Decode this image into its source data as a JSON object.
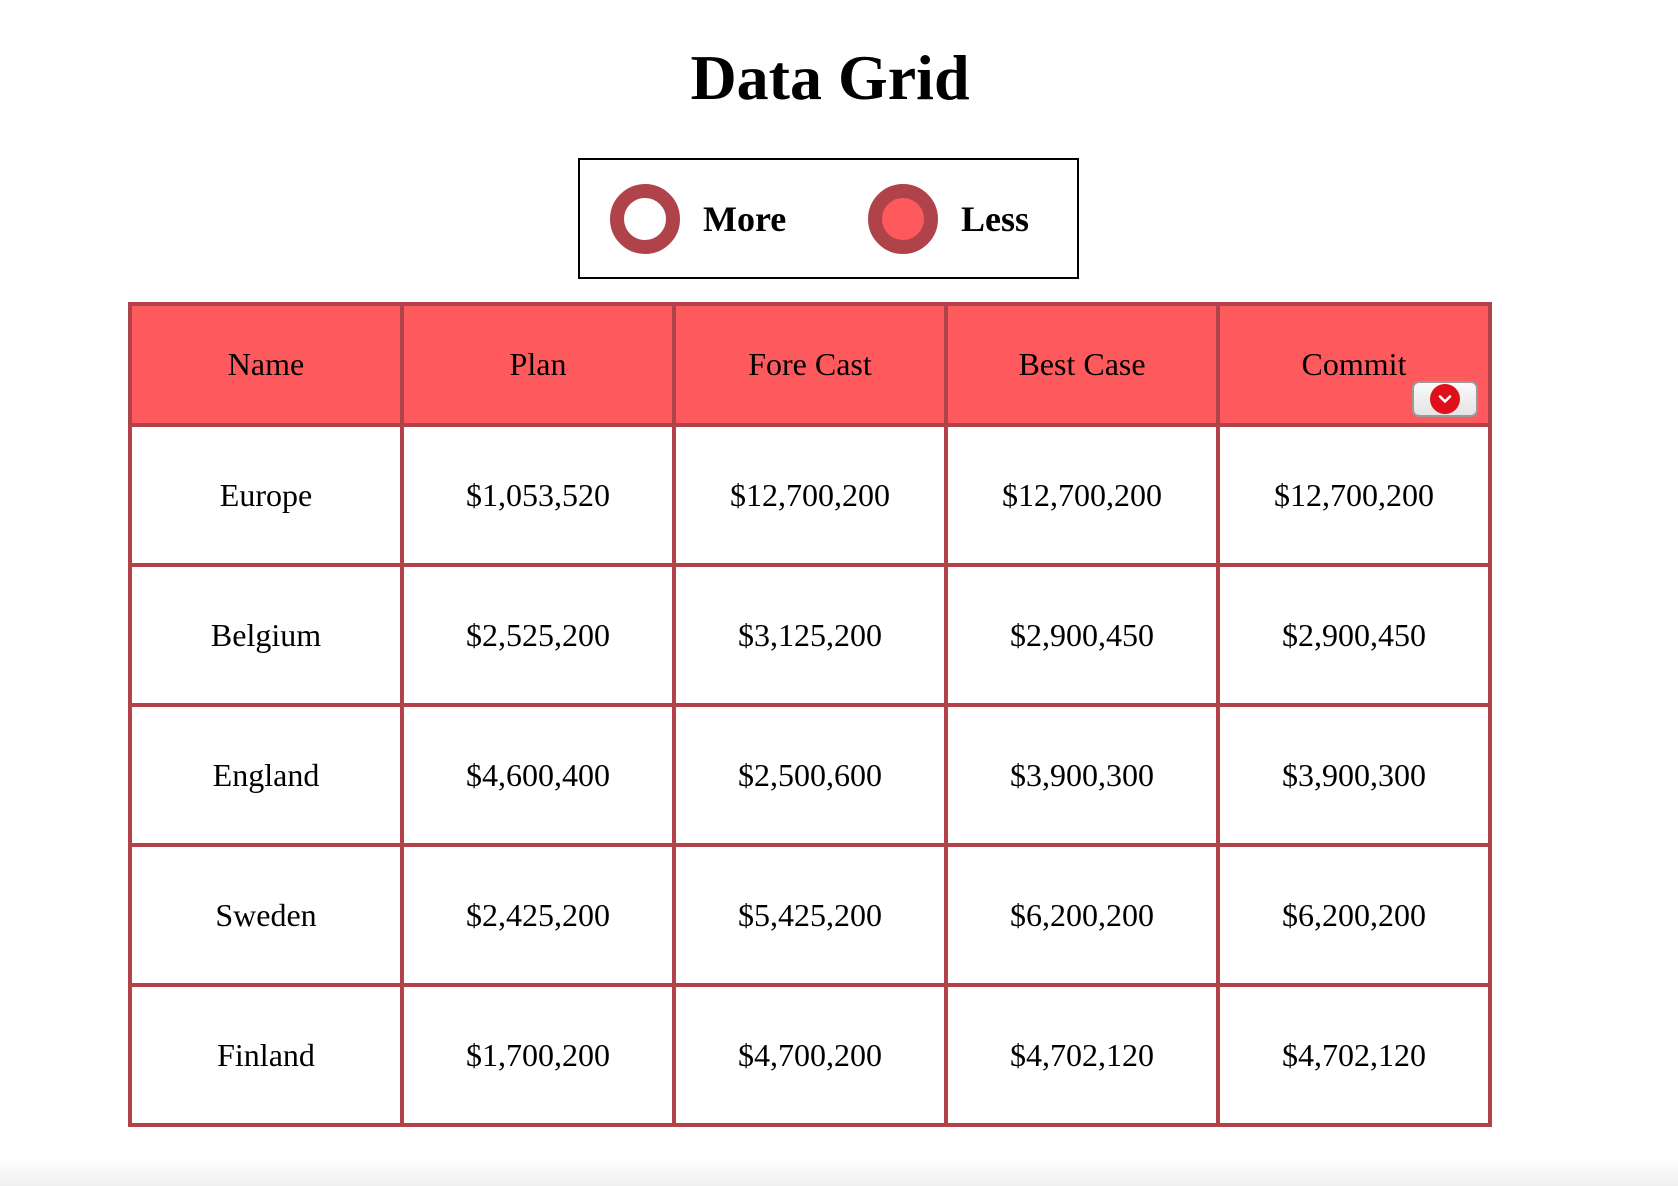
{
  "page": {
    "title": "Data Grid"
  },
  "filter": {
    "options": [
      {
        "label": "More",
        "selected": false
      },
      {
        "label": "Less",
        "selected": true
      }
    ]
  },
  "grid": {
    "columns": [
      "Name",
      "Plan",
      "Fore Cast",
      "Best Case",
      "Commit"
    ],
    "column_menu_icon": "chevron-down-icon",
    "rows": [
      {
        "name": "Europe",
        "plan": "$1,053,520",
        "forecast": "$12,700,200",
        "best_case": "$12,700,200",
        "commit": "$12,700,200"
      },
      {
        "name": "Belgium",
        "plan": "$2,525,200",
        "forecast": "$3,125,200",
        "best_case": "$2,900,450",
        "commit": "$2,900,450"
      },
      {
        "name": "England",
        "plan": "$4,600,400",
        "forecast": "$2,500,600",
        "best_case": "$3,900,300",
        "commit": "$3,900,300"
      },
      {
        "name": "Sweden",
        "plan": "$2,425,200",
        "forecast": "$5,425,200",
        "best_case": "$6,200,200",
        "commit": "$6,200,200"
      },
      {
        "name": "Finland",
        "plan": "$1,700,200",
        "forecast": "$4,700,200",
        "best_case": "$4,702,120",
        "commit": "$4,702,120"
      }
    ]
  },
  "colors": {
    "header_bg": "#fe5a5e",
    "border": "#b0424a",
    "radio_ring": "#b0424a",
    "menu_icon": "#e0101b"
  }
}
